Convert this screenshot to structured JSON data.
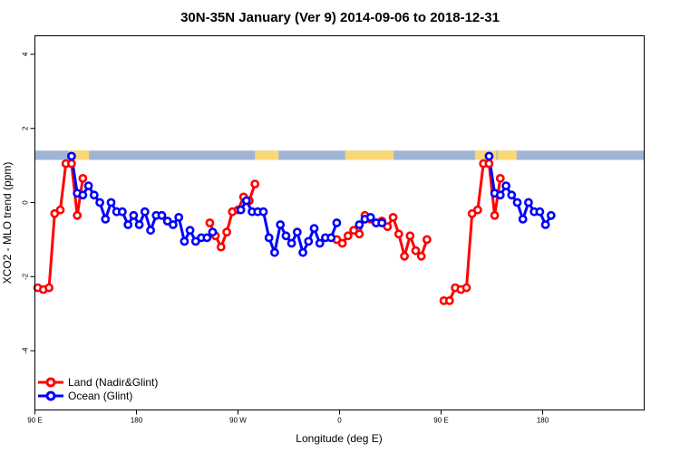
{
  "chart_data": {
    "type": "line",
    "title": "30N-35N January (Ver 9)   2014-09-06 to 2018-12-31",
    "xlabel": "Longitude (deg E)",
    "ylabel": "XCO2 - MLO trend (ppm)",
    "xlim": [
      90,
      630
    ],
    "ylim": [
      -5.6,
      4.5
    ],
    "x_ticks": [
      {
        "value": 90,
        "label": "90 E"
      },
      {
        "value": 180,
        "label": "180"
      },
      {
        "value": 270,
        "label": "90 W"
      },
      {
        "value": 360,
        "label": "0"
      },
      {
        "value": 450,
        "label": "90 E"
      },
      {
        "value": 540,
        "label": "180"
      }
    ],
    "y_ticks": [
      {
        "value": 4,
        "label": "4"
      },
      {
        "value": 2,
        "label": "2"
      },
      {
        "value": 0,
        "label": "0"
      },
      {
        "value": -2,
        "label": "-2"
      },
      {
        "value": -4,
        "label": "-4"
      }
    ],
    "grid": false,
    "legend_position": "bottom-left",
    "band": {
      "y_range": [
        1.15,
        1.4
      ],
      "ocean_color": "#a0b4d6",
      "land_color": "#f9d876",
      "land_x_ranges": [
        [
          120,
          138
        ],
        [
          285,
          306
        ],
        [
          365,
          408
        ],
        [
          480,
          499
        ],
        [
          500,
          517
        ]
      ]
    },
    "series": [
      {
        "name": "Land (Nadir&Glint)",
        "color": "#ff0000",
        "segments": [
          [
            [
              92.5,
              -2.3
            ],
            [
              97.5,
              -2.35
            ],
            [
              102.5,
              -2.3
            ],
            [
              107.5,
              -0.3
            ],
            [
              112.5,
              -0.2
            ],
            [
              117.5,
              1.05
            ],
            [
              122.5,
              1.05
            ],
            [
              127.5,
              -0.35
            ],
            [
              132.5,
              0.65
            ]
          ],
          [
            [
              245,
              -0.55
            ],
            [
              250,
              -0.9
            ],
            [
              255,
              -1.2
            ],
            [
              260,
              -0.8
            ],
            [
              265,
              -0.25
            ],
            [
              270,
              -0.2
            ],
            [
              275,
              0.15
            ],
            [
              280,
              0.05
            ],
            [
              285,
              0.5
            ]
          ],
          [
            [
              357.5,
              -1.0
            ],
            [
              362.5,
              -1.1
            ],
            [
              367.5,
              -0.9
            ],
            [
              372.5,
              -0.75
            ],
            [
              377.5,
              -0.85
            ],
            [
              382.5,
              -0.35
            ],
            [
              387.5,
              -0.45
            ],
            [
              392.5,
              -0.55
            ],
            [
              397.5,
              -0.5
            ],
            [
              402.5,
              -0.65
            ],
            [
              407.5,
              -0.4
            ],
            [
              412.5,
              -0.85
            ],
            [
              417.5,
              -1.45
            ],
            [
              422.5,
              -0.9
            ],
            [
              427.5,
              -1.3
            ],
            [
              432.5,
              -1.45
            ],
            [
              437.5,
              -1.0
            ]
          ],
          [
            [
              452.5,
              -2.65
            ],
            [
              457.5,
              -2.65
            ],
            [
              462.5,
              -2.3
            ],
            [
              467.5,
              -2.35
            ],
            [
              472.5,
              -2.3
            ],
            [
              477.5,
              -0.3
            ],
            [
              482.5,
              -0.2
            ],
            [
              487.5,
              1.05
            ],
            [
              492.5,
              1.05
            ],
            [
              497.5,
              -0.35
            ],
            [
              502.5,
              0.65
            ]
          ]
        ]
      },
      {
        "name": "Ocean (Glint)",
        "color": "#0000ff",
        "segments": [
          [
            [
              122.5,
              1.25
            ],
            [
              127.5,
              0.25
            ],
            [
              132.5,
              0.2
            ],
            [
              137.5,
              0.45
            ],
            [
              142.5,
              0.2
            ],
            [
              147.5,
              0.0
            ],
            [
              152.5,
              -0.45
            ],
            [
              157.5,
              0.0
            ],
            [
              162.5,
              -0.25
            ],
            [
              167.5,
              -0.25
            ],
            [
              172.5,
              -0.6
            ],
            [
              177.5,
              -0.35
            ],
            [
              182.5,
              -0.6
            ],
            [
              187.5,
              -0.25
            ],
            [
              192.5,
              -0.75
            ],
            [
              197.5,
              -0.35
            ],
            [
              202.5,
              -0.35
            ],
            [
              207.5,
              -0.5
            ],
            [
              212.5,
              -0.6
            ],
            [
              217.5,
              -0.4
            ],
            [
              222.5,
              -1.05
            ],
            [
              227.5,
              -0.75
            ],
            [
              232.5,
              -1.05
            ],
            [
              237.5,
              -0.95
            ],
            [
              242.5,
              -0.95
            ],
            [
              247.5,
              -0.8
            ]
          ],
          [
            [
              272.5,
              -0.2
            ],
            [
              277.5,
              0.05
            ],
            [
              282.5,
              -0.25
            ],
            [
              287.5,
              -0.25
            ],
            [
              292.5,
              -0.25
            ],
            [
              297.5,
              -0.95
            ],
            [
              302.5,
              -1.35
            ],
            [
              307.5,
              -0.6
            ],
            [
              312.5,
              -0.9
            ],
            [
              317.5,
              -1.1
            ],
            [
              322.5,
              -0.8
            ],
            [
              327.5,
              -1.35
            ],
            [
              332.5,
              -1.05
            ],
            [
              337.5,
              -0.7
            ],
            [
              342.5,
              -1.1
            ],
            [
              347.5,
              -0.95
            ],
            [
              352.5,
              -0.95
            ],
            [
              357.5,
              -0.55
            ]
          ],
          [
            [
              377.5,
              -0.6
            ],
            [
              382.5,
              -0.45
            ],
            [
              387.5,
              -0.4
            ],
            [
              392.5,
              -0.55
            ],
            [
              397.5,
              -0.55
            ]
          ],
          [
            [
              492.5,
              1.25
            ],
            [
              497.5,
              0.25
            ],
            [
              502.5,
              0.2
            ],
            [
              507.5,
              0.45
            ],
            [
              512.5,
              0.2
            ],
            [
              517.5,
              0.0
            ],
            [
              522.5,
              -0.45
            ],
            [
              527.5,
              0.0
            ],
            [
              532.5,
              -0.25
            ],
            [
              537.5,
              -0.25
            ],
            [
              542.5,
              -0.6
            ],
            [
              547.5,
              -0.35
            ]
          ]
        ]
      }
    ]
  }
}
